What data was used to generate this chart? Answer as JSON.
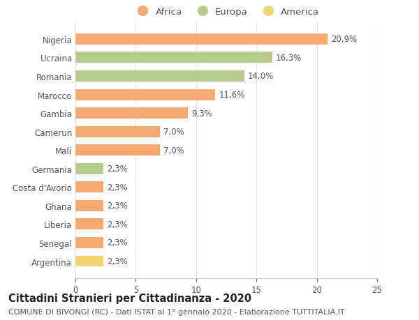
{
  "categories": [
    "Nigeria",
    "Ucraina",
    "Romania",
    "Marocco",
    "Gambia",
    "Camerun",
    "Mali",
    "Germania",
    "Costa d'Avorio",
    "Ghana",
    "Liberia",
    "Senegal",
    "Argentina"
  ],
  "values": [
    20.9,
    16.3,
    14.0,
    11.6,
    9.3,
    7.0,
    7.0,
    2.3,
    2.3,
    2.3,
    2.3,
    2.3,
    2.3
  ],
  "labels": [
    "20,9%",
    "16,3%",
    "14,0%",
    "11,6%",
    "9,3%",
    "7,0%",
    "7,0%",
    "2,3%",
    "2,3%",
    "2,3%",
    "2,3%",
    "2,3%",
    "2,3%"
  ],
  "colors": [
    "#f5aa72",
    "#b5cc8e",
    "#b5cc8e",
    "#f5aa72",
    "#f5aa72",
    "#f5aa72",
    "#f5aa72",
    "#b5cc8e",
    "#f5aa72",
    "#f5aa72",
    "#f5aa72",
    "#f5aa72",
    "#f0d470"
  ],
  "legend_labels": [
    "Africa",
    "Europa",
    "America"
  ],
  "legend_colors": [
    "#f5aa72",
    "#b5cc8e",
    "#f0d470"
  ],
  "title": "Cittadini Stranieri per Cittadinanza - 2020",
  "subtitle": "COMUNE DI BIVONGI (RC) - Dati ISTAT al 1° gennaio 2020 - Elaborazione TUTTITALIA.IT",
  "xlim": [
    0,
    25
  ],
  "xticks": [
    0,
    5,
    10,
    15,
    20,
    25
  ],
  "background_color": "#ffffff",
  "grid_color": "#e8e8e8",
  "bar_height": 0.6,
  "label_fontsize": 8.5,
  "title_fontsize": 10.5,
  "subtitle_fontsize": 8,
  "tick_fontsize": 8.5,
  "legend_fontsize": 9.5,
  "text_color": "#555555",
  "title_color": "#222222"
}
